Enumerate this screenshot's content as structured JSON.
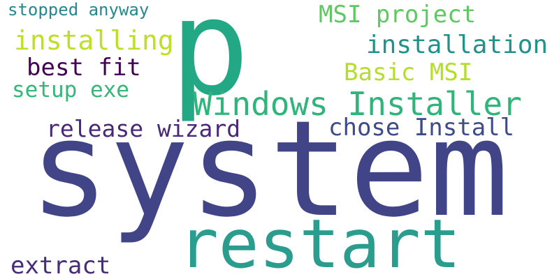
{
  "words": [
    {
      "text": "system",
      "color": "#414487"
    },
    {
      "text": "p",
      "color": "#22a884"
    },
    {
      "text": "restart",
      "color": "#2a9d8f"
    },
    {
      "text": "Windows Installer",
      "color": "#2fb47c"
    },
    {
      "text": "release wizard",
      "color": "#482878"
    },
    {
      "text": "chose Install",
      "color": "#3e4a89"
    },
    {
      "text": "MSI project",
      "color": "#5ec962"
    },
    {
      "text": "installation",
      "color": "#21918c"
    },
    {
      "text": "Basic MSI",
      "color": "#b5de2b"
    },
    {
      "text": "installing",
      "color": "#bddf26"
    },
    {
      "text": "best fit",
      "color": "#440154"
    },
    {
      "text": "setup exe",
      "color": "#35b779"
    },
    {
      "text": "stopped anyway",
      "color": "#23898e"
    },
    {
      "text": "extract",
      "color": "#472c7a"
    }
  ]
}
